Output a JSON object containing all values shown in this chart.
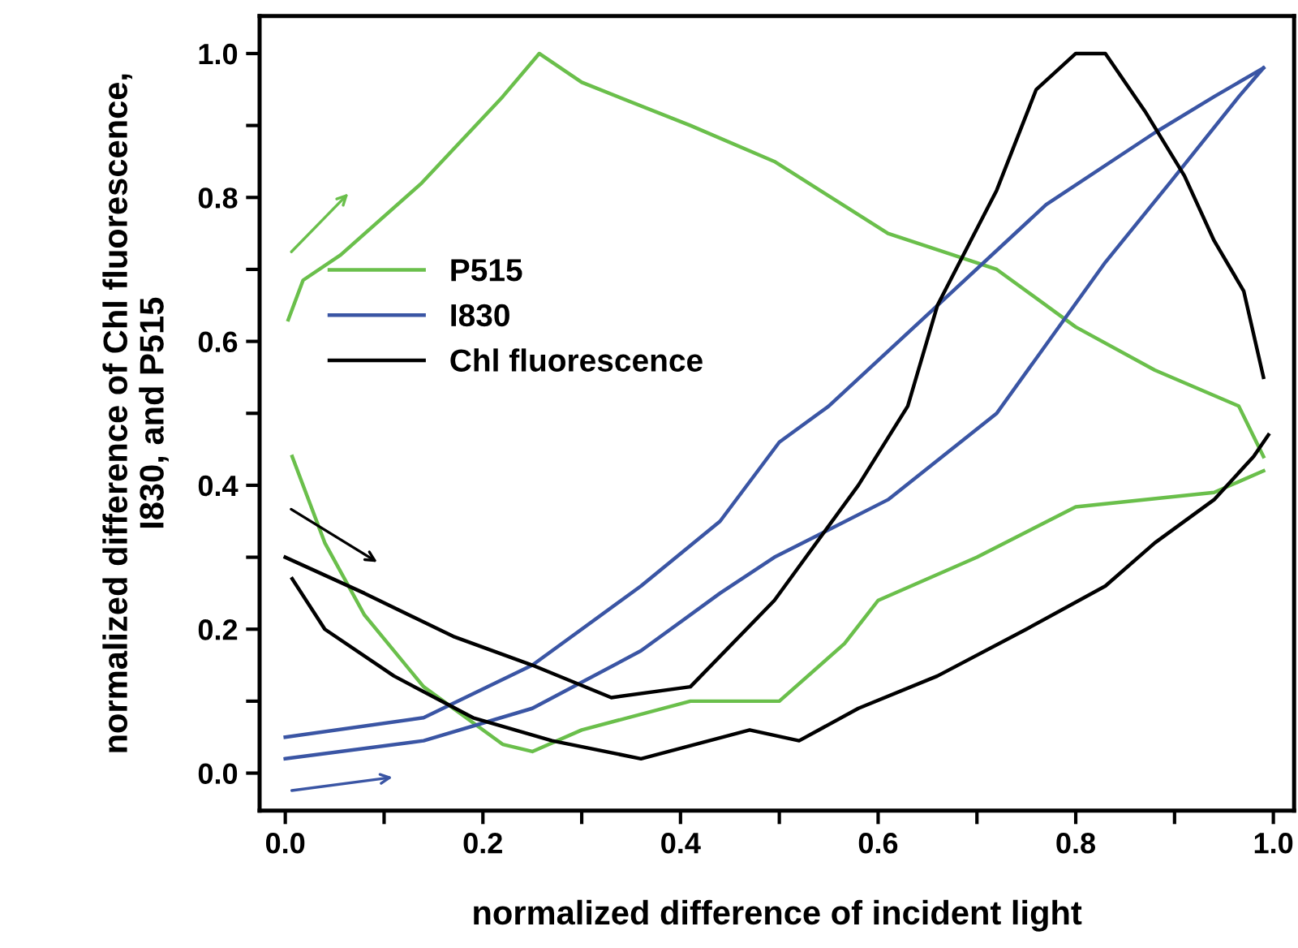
{
  "chart_data": {
    "type": "line",
    "xlabel": "normalized difference of incident light",
    "ylabel": "normalized difference of Chl fluorescence,\nI830, and P515",
    "xlim": [
      -0.026,
      1.021
    ],
    "ylim": [
      -0.052,
      1.052
    ],
    "xticks": [
      {
        "value": 0,
        "label": "0.0"
      },
      {
        "value": 0.1,
        "label": null
      },
      {
        "value": 0.2,
        "label": "0.2"
      },
      {
        "value": 0.3,
        "label": null
      },
      {
        "value": 0.4,
        "label": "0.4"
      },
      {
        "value": 0.5,
        "label": null
      },
      {
        "value": 0.6,
        "label": "0.6"
      },
      {
        "value": 0.7,
        "label": null
      },
      {
        "value": 0.8,
        "label": "0.8"
      },
      {
        "value": 0.9,
        "label": null
      },
      {
        "value": 1,
        "label": "1.0"
      }
    ],
    "yticks": [
      {
        "value": 0,
        "label": "0.0"
      },
      {
        "value": 0.1,
        "label": null
      },
      {
        "value": 0.2,
        "label": "0.2"
      },
      {
        "value": 0.3,
        "label": null
      },
      {
        "value": 0.4,
        "label": "0.4"
      },
      {
        "value": 0.5,
        "label": null
      },
      {
        "value": 0.6,
        "label": "0.6"
      },
      {
        "value": 0.7,
        "label": null
      },
      {
        "value": 0.8,
        "label": "0.8"
      },
      {
        "value": 0.9,
        "label": null
      },
      {
        "value": 1,
        "label": "1.0"
      }
    ],
    "grid": false,
    "legend": "left",
    "marker": "none",
    "line_style": "solid",
    "series": [
      {
        "name": "P515",
        "color": "#6abf4b",
        "x": [
          0.003,
          0.018,
          0.056,
          0.138,
          0.22,
          0.257,
          0.3,
          0.41,
          0.495,
          0.61,
          0.72,
          0.8,
          0.88,
          0.965,
          0.99
        ],
        "values": [
          0.63,
          0.685,
          0.72,
          0.82,
          0.94,
          1.0,
          0.96,
          0.9,
          0.85,
          0.75,
          0.7,
          0.62,
          0.56,
          0.51,
          0.44
        ]
      },
      {
        "color": "#6abf4b",
        "x": [
          0.007,
          0.04,
          0.08,
          0.14,
          0.22,
          0.25,
          0.3,
          0.41,
          0.5,
          0.566,
          0.6,
          0.7,
          0.8,
          0.94,
          0.99
        ],
        "values": [
          0.44,
          0.32,
          0.22,
          0.12,
          0.04,
          0.03,
          0.06,
          0.1,
          0.1,
          0.18,
          0.24,
          0.3,
          0.37,
          0.39,
          0.42
        ]
      },
      {
        "name": "I830",
        "color": "#3a55a4",
        "x": [
          0.0,
          0.14,
          0.25,
          0.36,
          0.44,
          0.495,
          0.61,
          0.72,
          0.83,
          0.895,
          0.965,
          0.99
        ],
        "values": [
          0.02,
          0.045,
          0.09,
          0.17,
          0.25,
          0.3,
          0.38,
          0.5,
          0.71,
          0.82,
          0.94,
          0.98
        ]
      },
      {
        "color": "#3a55a4",
        "x": [
          0.0,
          0.14,
          0.25,
          0.36,
          0.44,
          0.5,
          0.55,
          0.66,
          0.77,
          0.88,
          0.94,
          0.99
        ],
        "values": [
          0.05,
          0.077,
          0.15,
          0.26,
          0.35,
          0.46,
          0.51,
          0.65,
          0.79,
          0.89,
          0.94,
          0.98
        ]
      },
      {
        "name": "Chl fluorescence",
        "color": "#000000",
        "x": [
          0.0,
          0.08,
          0.17,
          0.25,
          0.33,
          0.41,
          0.495,
          0.58,
          0.63,
          0.66,
          0.72,
          0.76,
          0.8,
          0.83,
          0.87,
          0.91,
          0.94,
          0.97,
          0.99
        ],
        "values": [
          0.3,
          0.25,
          0.19,
          0.15,
          0.105,
          0.12,
          0.24,
          0.4,
          0.51,
          0.65,
          0.81,
          0.95,
          1.0,
          1.0,
          0.92,
          0.83,
          0.74,
          0.67,
          0.55
        ]
      },
      {
        "color": "#000000",
        "x": [
          0.007,
          0.04,
          0.11,
          0.19,
          0.27,
          0.36,
          0.47,
          0.52,
          0.58,
          0.66,
          0.75,
          0.83,
          0.88,
          0.94,
          0.98,
          0.995
        ],
        "values": [
          0.27,
          0.2,
          0.135,
          0.077,
          0.045,
          0.02,
          0.06,
          0.045,
          0.09,
          0.135,
          0.2,
          0.26,
          0.32,
          0.38,
          0.44,
          0.47
        ]
      }
    ]
  }
}
